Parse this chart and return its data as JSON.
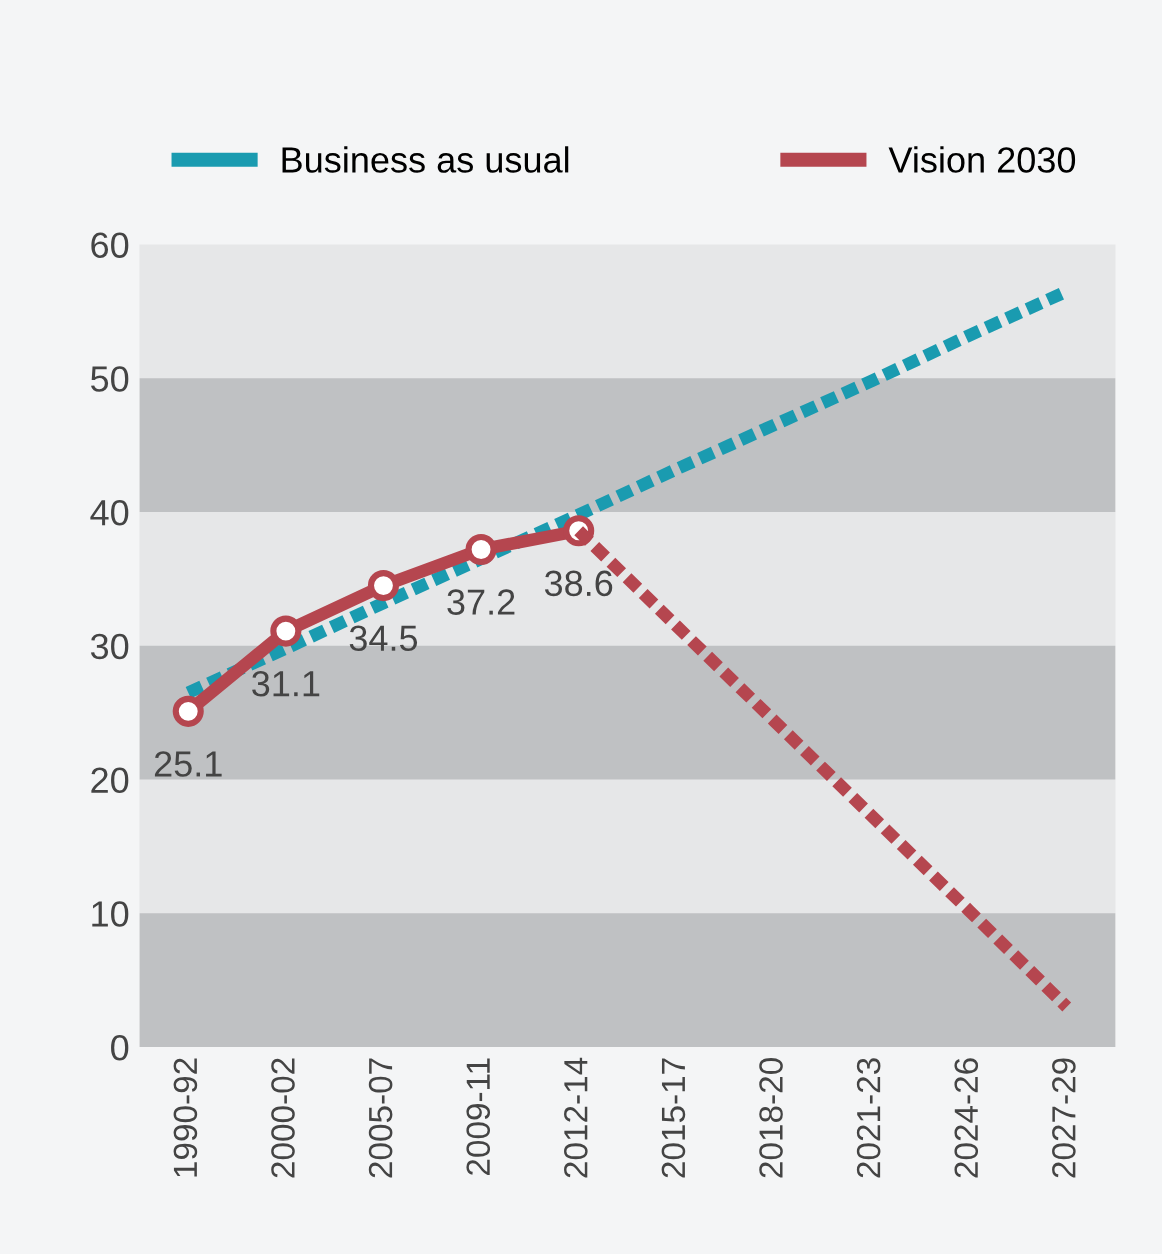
{
  "chart_data": {
    "type": "line",
    "categories": [
      "1990-92",
      "2000-02",
      "2005-07",
      "2009-11",
      "2012-14",
      "2015-17",
      "2018-20",
      "2021-23",
      "2024-26",
      "2027-29"
    ],
    "series": [
      {
        "name": "Business as usual",
        "color": "#1a9bb0",
        "line_style": "dashed",
        "marker": "none",
        "values": [
          26.5,
          29.8,
          33.2,
          36.5,
          39.8,
          43.2,
          46.5,
          49.8,
          53.2,
          56.5
        ]
      },
      {
        "name": "Vision 2030",
        "color": "#b5464f",
        "line_style": "solid",
        "marker": "circle",
        "values": [
          25.1,
          31.1,
          34.5,
          37.2,
          38.6,
          null,
          null,
          null,
          null,
          null
        ],
        "value_labels": [
          "25.1",
          "31.1",
          "34.5",
          "37.2",
          "38.6",
          null,
          null,
          null,
          null,
          null
        ]
      },
      {
        "color": "#b5464f",
        "line_style": "dashed",
        "marker": "none",
        "values": [
          null,
          null,
          null,
          null,
          38.6,
          31.5,
          24.4,
          17.3,
          10.2,
          3
        ]
      }
    ],
    "ylim": [
      0,
      60
    ],
    "yticks": [
      0,
      10,
      20,
      30,
      40,
      50,
      60
    ],
    "bands": [
      {
        "axis": "y",
        "from": 0,
        "to": 10,
        "color": "#bfc1c3"
      },
      {
        "axis": "y",
        "from": 20,
        "to": 30,
        "color": "#bfc1c3"
      },
      {
        "axis": "y",
        "from": 40,
        "to": 50,
        "color": "#bfc1c3"
      }
    ],
    "grid": false,
    "legend": "top"
  }
}
